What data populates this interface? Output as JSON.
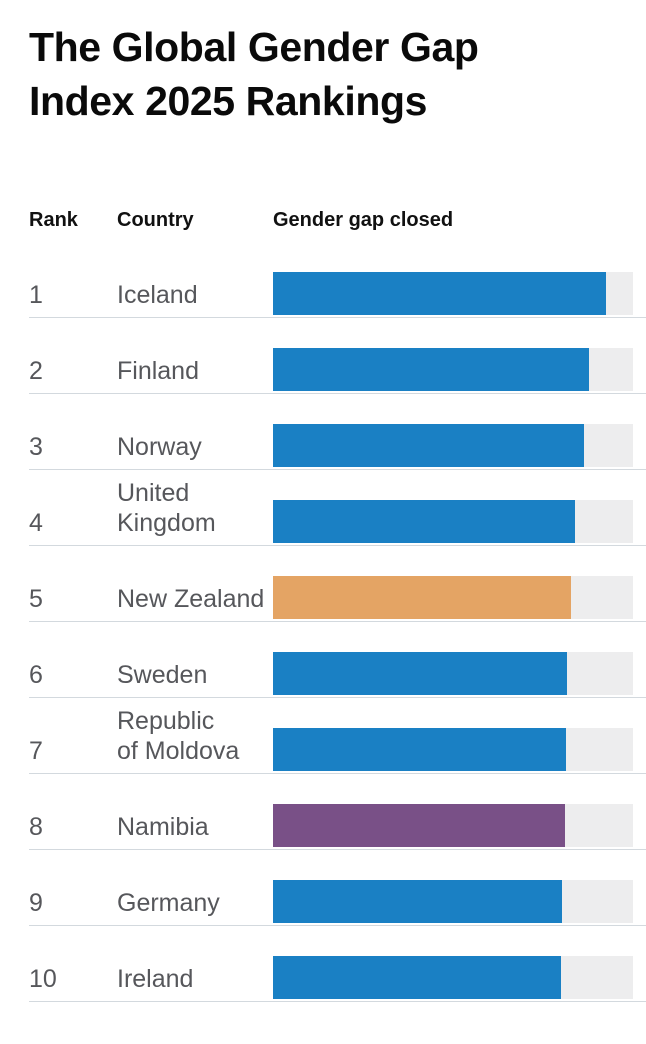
{
  "title": {
    "lines": [
      "The Global Gender Gap",
      "Index 2025 Rankings"
    ]
  },
  "columns": {
    "rank": "Rank",
    "country": "Country",
    "gap": "Gender gap closed"
  },
  "rows": [
    {
      "rank": "1",
      "country": "Iceland",
      "value": 92.6,
      "color": "blue"
    },
    {
      "rank": "2",
      "country": "Finland",
      "value": 87.9,
      "color": "blue"
    },
    {
      "rank": "3",
      "country": "Norway",
      "value": 86.3,
      "color": "blue"
    },
    {
      "rank": "4",
      "country": "United\nKingdom",
      "value": 83.8,
      "color": "blue"
    },
    {
      "rank": "5",
      "country": "New Zealand",
      "value": 82.7,
      "color": "orange"
    },
    {
      "rank": "6",
      "country": "Sweden",
      "value": 81.7,
      "color": "blue"
    },
    {
      "rank": "7",
      "country": "Republic\nof Moldova",
      "value": 81.3,
      "color": "blue"
    },
    {
      "rank": "8",
      "country": "Namibia",
      "value": 81.1,
      "color": "purple"
    },
    {
      "rank": "9",
      "country": "Germany",
      "value": 80.3,
      "color": "blue"
    },
    {
      "rank": "10",
      "country": "Ireland",
      "value": 80.1,
      "color": "blue"
    }
  ],
  "colors": {
    "blue": "#1a80c4",
    "orange": "#e4a464",
    "purple": "#795087",
    "track": "#ededee",
    "divider": "#d3d9de",
    "text": "#56575b",
    "heading": "#0a0a0a"
  },
  "chart_data": {
    "type": "bar",
    "orientation": "horizontal",
    "title": "The Global Gender Gap Index 2025 Rankings",
    "categories": [
      "Iceland",
      "Finland",
      "Norway",
      "United Kingdom",
      "New Zealand",
      "Sweden",
      "Republic of Moldova",
      "Namibia",
      "Germany",
      "Ireland"
    ],
    "ranks": [
      1,
      2,
      3,
      4,
      5,
      6,
      7,
      8,
      9,
      10
    ],
    "values": [
      92.6,
      87.9,
      86.3,
      83.8,
      82.7,
      81.7,
      81.3,
      81.1,
      80.3,
      80.1
    ],
    "value_unit": "% of gender gap closed (bar length vs full track = 100%)",
    "xlabel": "Gender gap closed",
    "xlim": [
      0,
      100
    ],
    "bar_colors": [
      "#1a80c4",
      "#1a80c4",
      "#1a80c4",
      "#1a80c4",
      "#e4a464",
      "#1a80c4",
      "#1a80c4",
      "#795087",
      "#1a80c4",
      "#1a80c4"
    ],
    "highlighted": {
      "New Zealand": "orange",
      "Namibia": "purple"
    },
    "grid": false,
    "legend": false,
    "data_labels": false
  }
}
